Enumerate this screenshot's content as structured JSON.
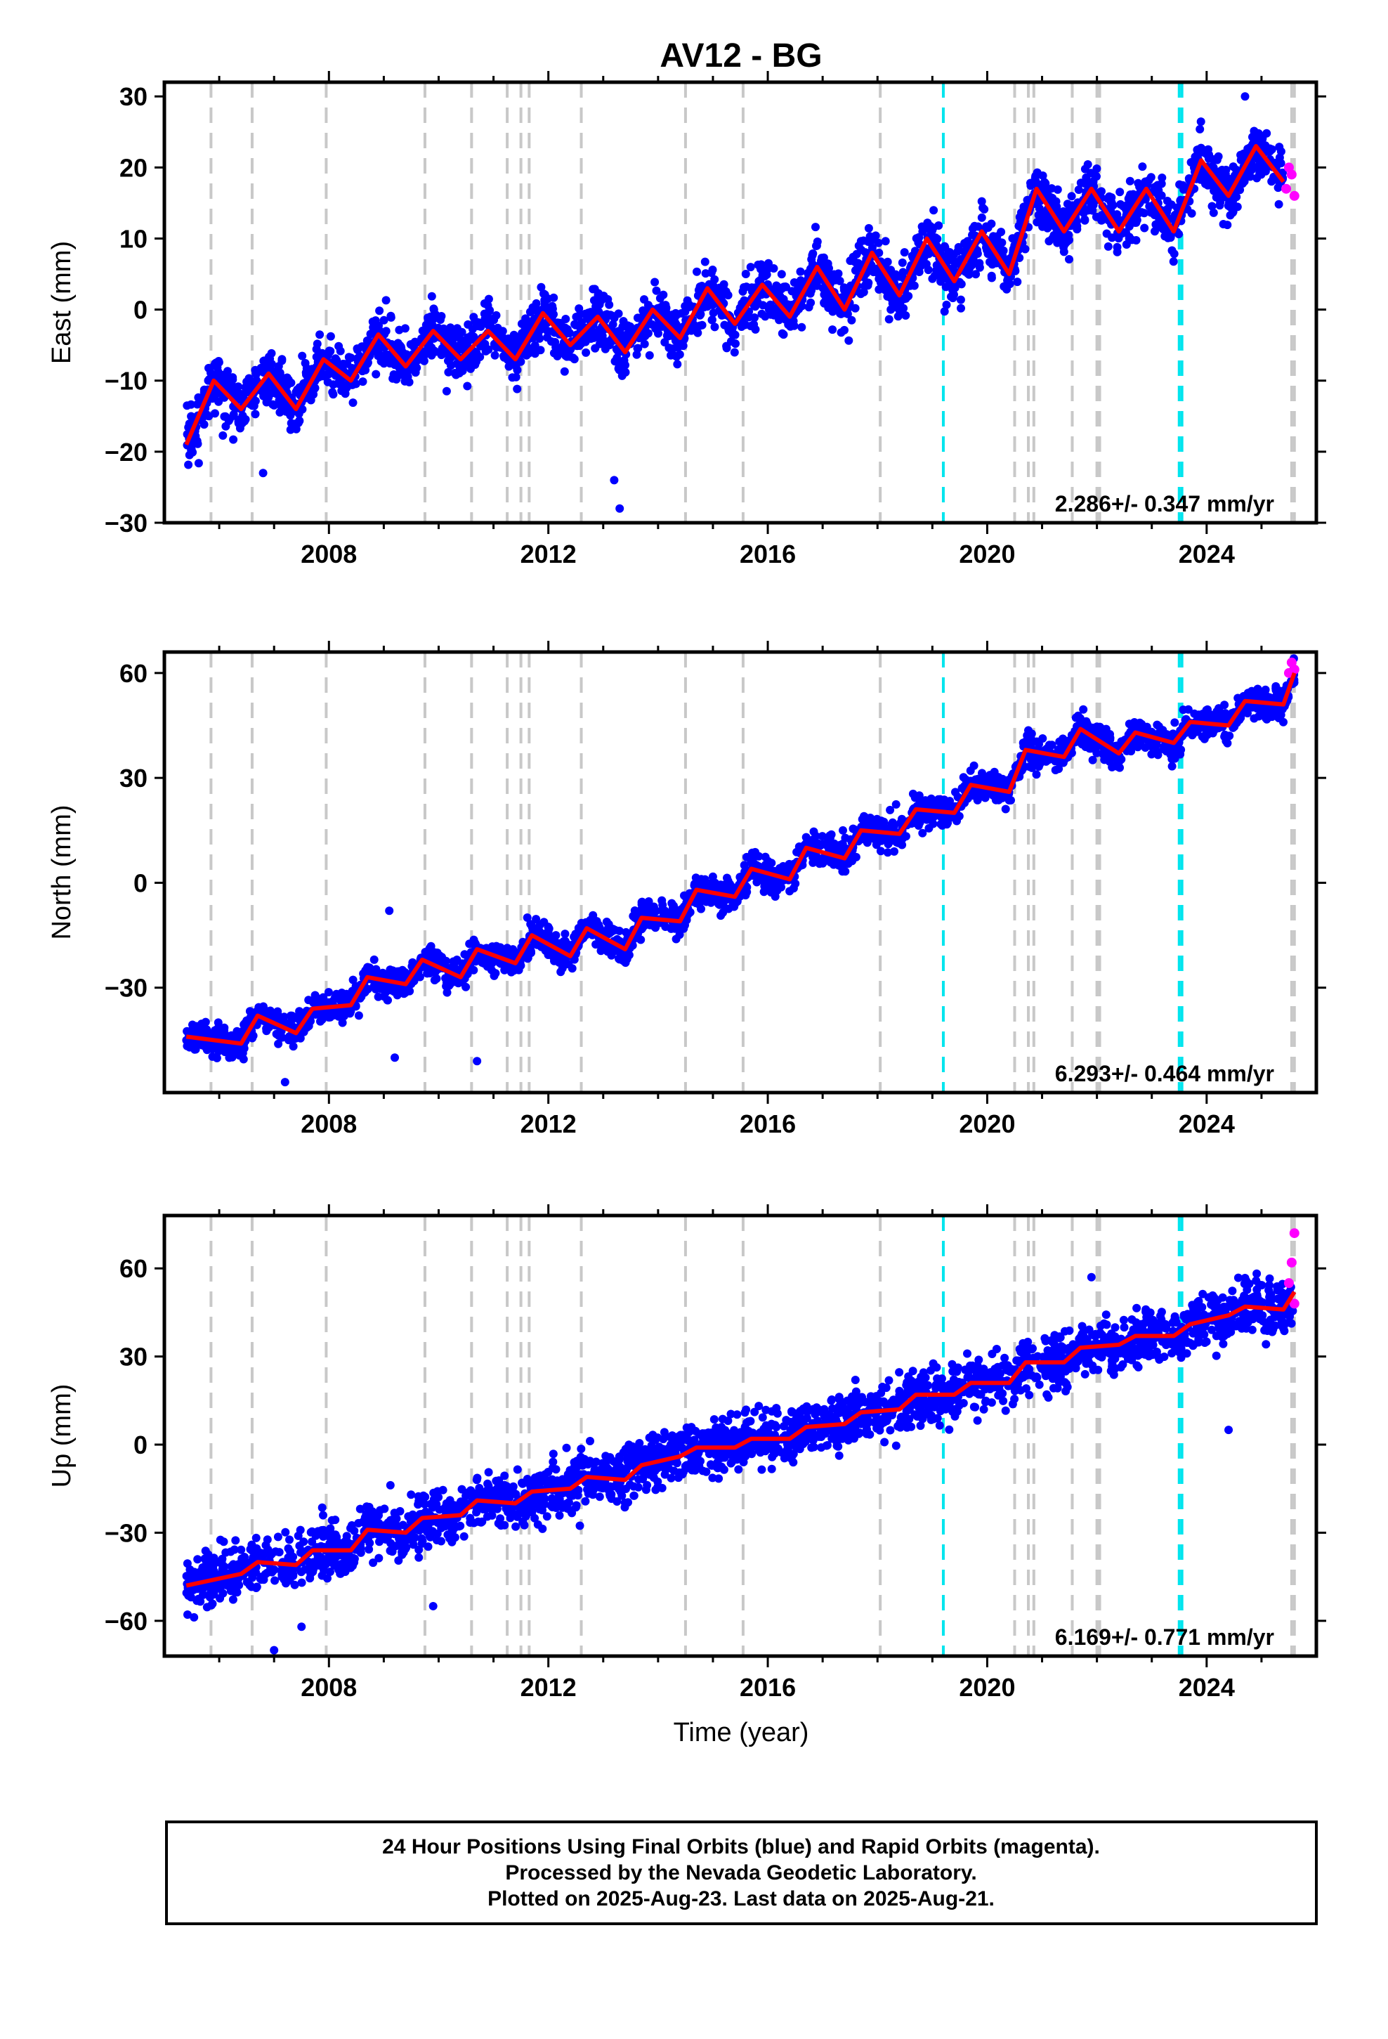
{
  "title": "AV12 - BG",
  "xlabel": "Time (year)",
  "footer": {
    "line1": "24 Hour Positions Using Final Orbits (blue) and Rapid Orbits (magenta).",
    "line2": "Processed by the Nevada Geodetic Laboratory.",
    "line3": "Plotted on 2025-Aug-23. Last data on 2025-Aug-21."
  },
  "colors": {
    "final_orbits": "#0000ff",
    "rapid_orbits": "#ff00ff",
    "model": "#ff0000",
    "equipment_change": "#c8c8c8",
    "earthquake": "#00e5ee"
  },
  "chart_data": [
    {
      "type": "scatter",
      "ylabel": "East (mm)",
      "xlim": [
        2005.0,
        2026.0
      ],
      "ylim": [
        -30,
        32
      ],
      "yticks": [
        -30,
        -20,
        -10,
        0,
        10,
        20,
        30
      ],
      "xticks": [
        2008,
        2012,
        2016,
        2020,
        2024
      ],
      "rate_text": "2.286+/- 0.347 mm/yr",
      "model_line": {
        "x": [
          2005.4,
          2005.9,
          2006.4,
          2006.9,
          2007.4,
          2007.9,
          2008.4,
          2008.9,
          2009.4,
          2009.9,
          2010.4,
          2010.9,
          2011.4,
          2011.9,
          2012.4,
          2012.9,
          2013.4,
          2013.9,
          2014.4,
          2014.9,
          2015.4,
          2015.9,
          2016.4,
          2016.9,
          2017.4,
          2017.9,
          2018.4,
          2018.9,
          2019.4,
          2019.9,
          2020.4,
          2020.9,
          2021.4,
          2021.9,
          2022.4,
          2022.9,
          2023.4,
          2023.9,
          2024.4,
          2024.9,
          2025.4
        ],
        "y": [
          -19,
          -10,
          -14,
          -9,
          -14,
          -7,
          -10,
          -3.5,
          -8,
          -3,
          -7,
          -3,
          -7,
          -0.5,
          -5,
          -1,
          -6,
          0,
          -4,
          3,
          -2,
          3.5,
          -1,
          6,
          0,
          8,
          2,
          10,
          4,
          11,
          5,
          17,
          11,
          17,
          11,
          17,
          11,
          21,
          16,
          23,
          18
        ]
      },
      "scatter_spread": 3.5,
      "rapid_points": {
        "x": [
          2025.45,
          2025.5,
          2025.55,
          2025.6
        ],
        "y": [
          17,
          20,
          19,
          16
        ]
      },
      "outliers": {
        "x": [
          2013.2,
          2013.3,
          2006.8,
          2024.7
        ],
        "y": [
          -24,
          -28,
          -23,
          30
        ]
      }
    },
    {
      "type": "scatter",
      "ylabel": "North (mm)",
      "xlim": [
        2005.0,
        2026.0
      ],
      "ylim": [
        -60,
        66
      ],
      "yticks": [
        -30,
        0,
        30,
        60
      ],
      "xticks": [
        2008,
        2012,
        2016,
        2020,
        2024
      ],
      "rate_text": "6.293+/- 0.464 mm/yr",
      "model_line": {
        "x": [
          2005.4,
          2006.4,
          2006.7,
          2007.4,
          2007.7,
          2008.4,
          2008.7,
          2009.4,
          2009.7,
          2010.4,
          2010.7,
          2011.4,
          2011.7,
          2012.4,
          2012.7,
          2013.4,
          2013.7,
          2014.4,
          2014.7,
          2015.4,
          2015.7,
          2016.4,
          2016.7,
          2017.4,
          2017.7,
          2018.4,
          2018.7,
          2019.4,
          2019.7,
          2020.4,
          2020.7,
          2021.4,
          2021.7,
          2022.4,
          2022.7,
          2023.4,
          2023.7,
          2024.4,
          2024.7,
          2025.4,
          2025.6
        ],
        "y": [
          -44,
          -46,
          -38,
          -43,
          -36,
          -35,
          -27,
          -29,
          -22,
          -27,
          -19,
          -23,
          -15,
          -21,
          -13,
          -19,
          -10,
          -11,
          -2,
          -4,
          4,
          1,
          10,
          7,
          15,
          14,
          21,
          20,
          28,
          26,
          38,
          36,
          44,
          37,
          43,
          40,
          46,
          45,
          52,
          51,
          60
        ]
      },
      "scatter_spread": 4,
      "rapid_points": {
        "x": [
          2025.5,
          2025.55,
          2025.6
        ],
        "y": [
          60,
          63,
          61
        ]
      },
      "outliers": {
        "x": [
          2009.1,
          2009.2,
          2010.7,
          2007.2
        ],
        "y": [
          -8,
          -50,
          -51,
          -57
        ]
      }
    },
    {
      "type": "scatter",
      "ylabel": "Up (mm)",
      "xlim": [
        2005.0,
        2026.0
      ],
      "ylim": [
        -72,
        78
      ],
      "yticks": [
        -60,
        -30,
        0,
        30,
        60
      ],
      "xticks": [
        2008,
        2012,
        2016,
        2020,
        2024
      ],
      "rate_text": "6.169+/- 0.771 mm/yr",
      "model_line": {
        "x": [
          2005.4,
          2006.4,
          2006.7,
          2007.4,
          2007.7,
          2008.4,
          2008.7,
          2009.4,
          2009.7,
          2010.4,
          2010.7,
          2011.4,
          2011.7,
          2012.4,
          2012.7,
          2013.4,
          2013.7,
          2014.4,
          2014.7,
          2015.4,
          2015.7,
          2016.4,
          2016.7,
          2017.4,
          2017.7,
          2018.4,
          2018.7,
          2019.4,
          2019.7,
          2020.4,
          2020.7,
          2021.4,
          2021.7,
          2022.4,
          2022.7,
          2023.4,
          2023.7,
          2024.4,
          2024.7,
          2025.4,
          2025.6
        ],
        "y": [
          -48,
          -44,
          -40,
          -41,
          -36,
          -36,
          -29,
          -30,
          -25,
          -24,
          -19,
          -20,
          -16,
          -15,
          -11,
          -12,
          -7,
          -4,
          -1,
          -1,
          2,
          2,
          6,
          7,
          11,
          12,
          17,
          17,
          21,
          21,
          28,
          28,
          33,
          34,
          37,
          37,
          41,
          44,
          47,
          46,
          52
        ]
      },
      "scatter_spread": 8,
      "rapid_points": {
        "x": [
          2025.5,
          2025.55,
          2025.6,
          2025.6
        ],
        "y": [
          55,
          62,
          72,
          48
        ]
      },
      "outliers": {
        "x": [
          2007.0,
          2007.5,
          2009.9,
          2024.4,
          2021.9
        ],
        "y": [
          -70,
          -62,
          -55,
          5,
          57
        ]
      }
    }
  ],
  "equipment_changes": [
    2005.85,
    2006.6,
    2007.95,
    2009.75,
    2010.6,
    2011.25,
    2011.5,
    2011.65,
    2012.6,
    2014.5,
    2015.55,
    2018.05,
    2020.5,
    2020.75,
    2020.85,
    2021.55,
    2022.0,
    2022.05,
    2025.55,
    2025.6
  ],
  "earthquakes": [
    2019.2,
    2023.5,
    2023.55
  ]
}
